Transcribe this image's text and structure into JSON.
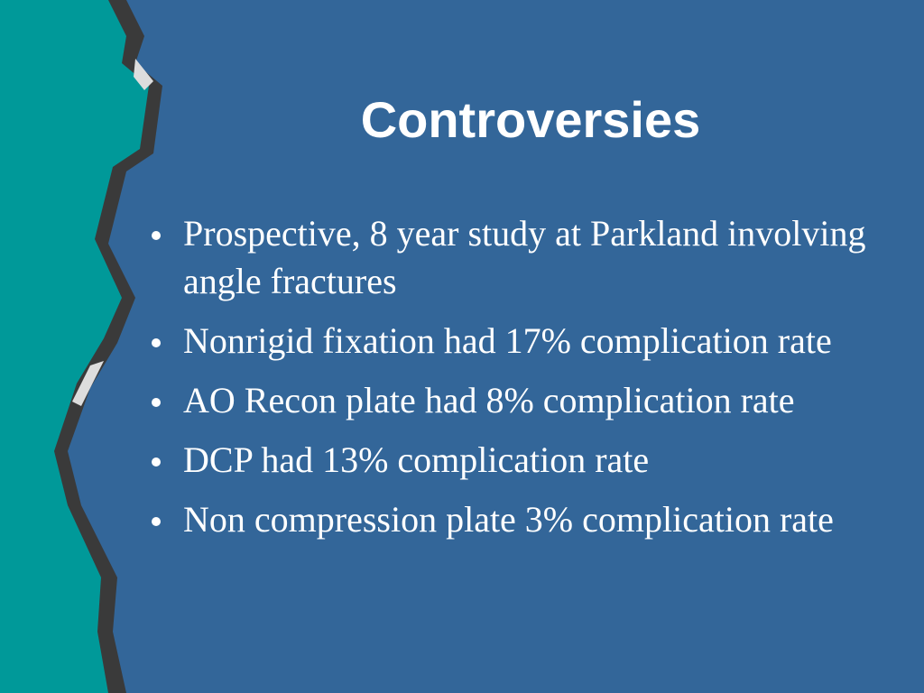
{
  "title": "Controversies",
  "bullets": [
    "Prospective, 8 year study at Parkland involving angle fractures",
    "Nonrigid fixation had 17% complication rate",
    "AO Recon plate had 8% complication rate",
    "DCP had 13% complication rate",
    "Non compression plate 3% complication rate"
  ]
}
